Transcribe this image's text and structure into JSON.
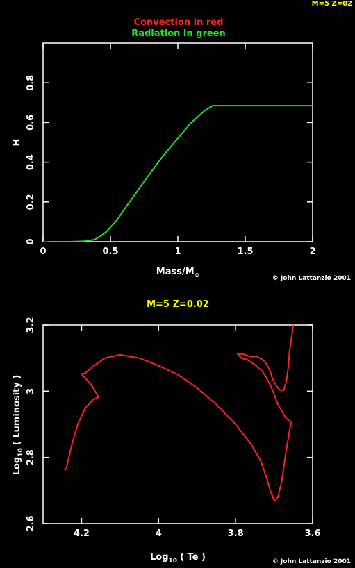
{
  "header_tag": "M=5 Z=02",
  "colors": {
    "background": "#000000",
    "axes": "#ffffff",
    "convection": "#ff2020",
    "radiation": "#22e022",
    "highlight": "#ffff00"
  },
  "chart_data": [
    {
      "type": "line",
      "title": "Convection in red",
      "subtitle": "Radiation in green",
      "xlabel": "Mass/M",
      "xlabel_sub": "⊙",
      "ylabel": "H",
      "xlim": [
        0,
        2
      ],
      "ylim": [
        0,
        1
      ],
      "grid": false,
      "credit": "© John Lattanzio 2001",
      "x_ticks": [
        {
          "v": 0,
          "label": "0"
        },
        {
          "v": 0.5,
          "label": "0.5"
        },
        {
          "v": 1,
          "label": "1"
        },
        {
          "v": 1.5,
          "label": "1.5"
        },
        {
          "v": 2,
          "label": "2"
        }
      ],
      "y_ticks": [
        {
          "v": 0,
          "label": "0"
        },
        {
          "v": 0.2,
          "label": "0.2"
        },
        {
          "v": 0.4,
          "label": "0.4"
        },
        {
          "v": 0.6,
          "label": "0.6"
        },
        {
          "v": 0.8,
          "label": "0.8"
        }
      ],
      "series": [
        {
          "color_key": "convection",
          "points": [
            [
              0.0,
              0.0
            ],
            [
              0.04,
              0.0
            ]
          ]
        },
        {
          "color_key": "radiation",
          "points": [
            [
              0.04,
              0.0
            ],
            [
              0.2,
              0.0
            ],
            [
              0.3,
              0.002
            ],
            [
              0.38,
              0.01
            ],
            [
              0.42,
              0.025
            ],
            [
              0.47,
              0.05
            ],
            [
              0.55,
              0.11
            ],
            [
              0.6,
              0.16
            ],
            [
              0.7,
              0.255
            ],
            [
              0.8,
              0.35
            ],
            [
              0.9,
              0.44
            ],
            [
              1.0,
              0.52
            ],
            [
              1.1,
              0.6
            ],
            [
              1.2,
              0.66
            ],
            [
              1.26,
              0.685
            ],
            [
              1.4,
              0.685
            ],
            [
              2.0,
              0.685
            ]
          ]
        }
      ]
    },
    {
      "type": "line",
      "title": "M=5 Z=0.02",
      "xlabel": "Log",
      "xlabel_sub": "10",
      "xlabel_rest": "( Te )",
      "ylabel": "Log",
      "ylabel_sub": "10",
      "ylabel_rest": "( Luminosity )",
      "xlim": [
        4.3,
        3.6
      ],
      "ylim": [
        2.6,
        3.2
      ],
      "grid": false,
      "credit": "© John Lattanzio 2001",
      "x_ticks": [
        {
          "v": 4.2,
          "label": "4.2"
        },
        {
          "v": 4.0,
          "label": "4"
        },
        {
          "v": 3.8,
          "label": "3.8"
        },
        {
          "v": 3.6,
          "label": "3.6"
        }
      ],
      "y_ticks": [
        {
          "v": 2.6,
          "label": "2.6"
        },
        {
          "v": 2.8,
          "label": "2.8"
        },
        {
          "v": 3.0,
          "label": "3"
        },
        {
          "v": 3.2,
          "label": "3.2"
        }
      ],
      "series": [
        {
          "color_key": "convection",
          "points": [
            [
              4.245,
              2.762
            ],
            [
              4.24,
              2.765
            ],
            [
              4.235,
              2.79
            ],
            [
              4.225,
              2.84
            ],
            [
              4.21,
              2.9
            ],
            [
              4.19,
              2.95
            ],
            [
              4.17,
              2.975
            ],
            [
              4.155,
              2.982
            ],
            [
              4.16,
              2.99
            ],
            [
              4.175,
              3.02
            ],
            [
              4.195,
              3.045
            ],
            [
              4.2,
              3.052
            ],
            [
              4.19,
              3.055
            ],
            [
              4.17,
              3.075
            ],
            [
              4.14,
              3.1
            ],
            [
              4.1,
              3.11
            ],
            [
              4.05,
              3.1
            ],
            [
              4.0,
              3.077
            ],
            [
              3.95,
              3.05
            ],
            [
              3.9,
              3.01
            ],
            [
              3.85,
              2.96
            ],
            [
              3.8,
              2.9
            ],
            [
              3.76,
              2.84
            ],
            [
              3.735,
              2.79
            ],
            [
              3.72,
              2.74
            ],
            [
              3.71,
              2.7
            ],
            [
              3.7,
              2.67
            ],
            [
              3.69,
              2.68
            ],
            [
              3.68,
              2.73
            ],
            [
              3.67,
              2.81
            ],
            [
              3.66,
              2.88
            ],
            [
              3.655,
              2.905
            ],
            [
              3.67,
              2.92
            ],
            [
              3.69,
              2.96
            ],
            [
              3.71,
              3.02
            ],
            [
              3.73,
              3.06
            ],
            [
              3.75,
              3.08
            ],
            [
              3.77,
              3.095
            ],
            [
              3.785,
              3.1
            ],
            [
              3.795,
              3.113
            ],
            [
              3.78,
              3.112
            ],
            [
              3.76,
              3.104
            ],
            [
              3.745,
              3.105
            ],
            [
              3.73,
              3.095
            ],
            [
              3.72,
              3.083
            ],
            [
              3.71,
              3.06
            ],
            [
              3.705,
              3.04
            ],
            [
              3.695,
              3.018
            ],
            [
              3.685,
              3.003
            ],
            [
              3.675,
              3.003
            ],
            [
              3.668,
              3.03
            ],
            [
              3.663,
              3.075
            ],
            [
              3.66,
              3.12
            ],
            [
              3.655,
              3.16
            ],
            [
              3.65,
              3.2
            ]
          ]
        }
      ]
    }
  ]
}
